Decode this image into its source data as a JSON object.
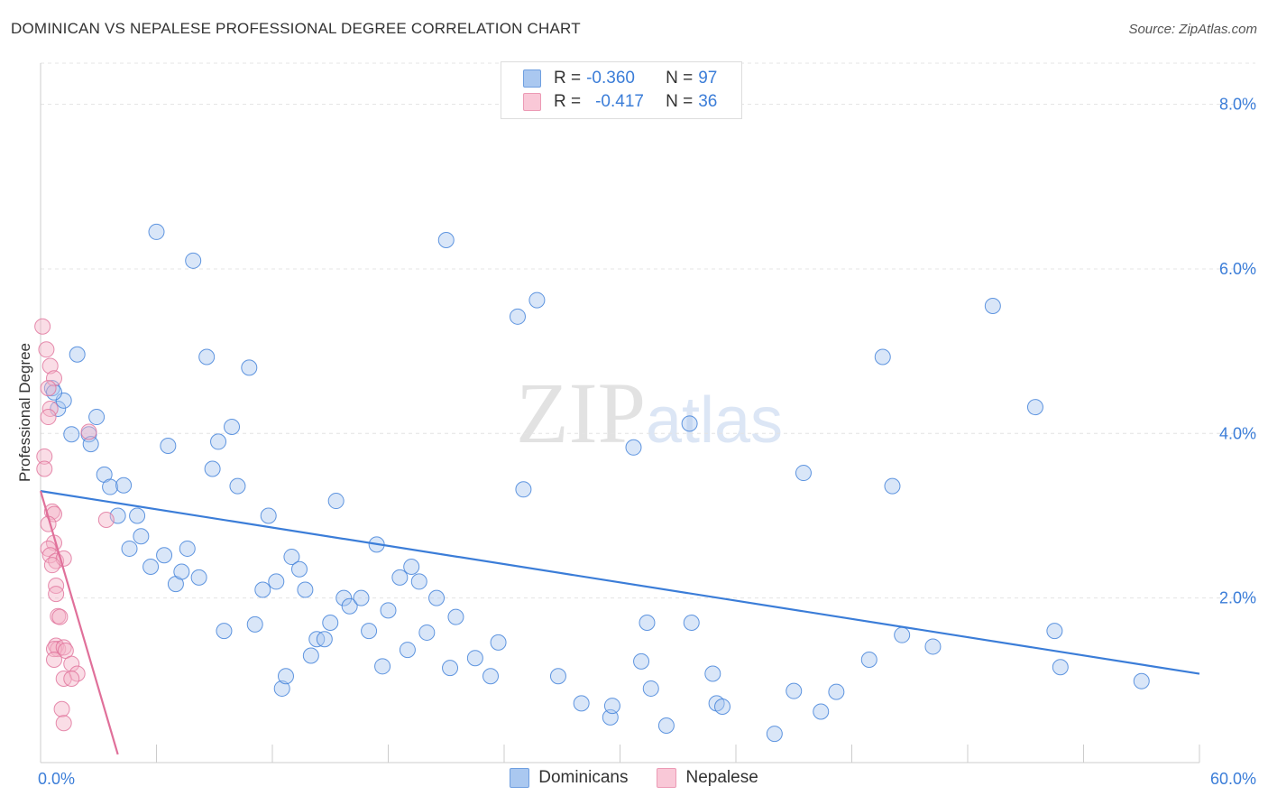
{
  "chart_data": {
    "type": "scatter",
    "title": "DOMINICAN VS NEPALESE PROFESSIONAL DEGREE CORRELATION CHART",
    "source": "Source: ZipAtlas.com",
    "ylabel": "Professional Degree",
    "xlabel": "",
    "xlim": [
      0,
      60
    ],
    "ylim": [
      0,
      8.5
    ],
    "y_ticks": [
      2,
      4,
      6,
      8
    ],
    "y_tick_labels": [
      "2.0%",
      "4.0%",
      "6.0%",
      "8.0%"
    ],
    "x_tick_labels": {
      "min": "0.0%",
      "max": "60.0%"
    },
    "grid": true,
    "legend_position": "top-center",
    "watermark": "ZIPatlas",
    "colors": {
      "blue": "#3b7dd8",
      "blue_fill": "#aac8f0",
      "pink": "#e0709a",
      "pink_fill": "#f5b3c8"
    },
    "series": [
      {
        "name": "Dominicans",
        "color": "blue",
        "R_label": "R = ",
        "R_value": "-0.360",
        "N_label": "N = ",
        "N_value": "97",
        "trend": {
          "x0": 0,
          "y0": 3.3,
          "x1": 60,
          "y1": 1.08
        },
        "points": [
          [
            0.6,
            4.55
          ],
          [
            0.9,
            4.3
          ],
          [
            1.2,
            4.4
          ],
          [
            1.9,
            4.96
          ],
          [
            1.6,
            3.99
          ],
          [
            2.5,
            3.99
          ],
          [
            2.6,
            3.87
          ],
          [
            2.9,
            4.2
          ],
          [
            3.3,
            3.5
          ],
          [
            3.6,
            3.35
          ],
          [
            4.0,
            3.0
          ],
          [
            4.3,
            3.37
          ],
          [
            4.6,
            2.6
          ],
          [
            5.0,
            3.0
          ],
          [
            5.2,
            2.75
          ],
          [
            5.7,
            2.38
          ],
          [
            6.0,
            6.45
          ],
          [
            6.4,
            2.52
          ],
          [
            6.6,
            3.85
          ],
          [
            7.0,
            2.17
          ],
          [
            7.3,
            2.32
          ],
          [
            7.6,
            2.6
          ],
          [
            7.9,
            6.1
          ],
          [
            8.2,
            2.25
          ],
          [
            8.6,
            4.93
          ],
          [
            8.9,
            3.57
          ],
          [
            9.2,
            3.9
          ],
          [
            9.5,
            1.6
          ],
          [
            9.9,
            4.08
          ],
          [
            10.2,
            3.36
          ],
          [
            10.8,
            4.8
          ],
          [
            11.1,
            1.68
          ],
          [
            11.5,
            2.1
          ],
          [
            11.8,
            3.0
          ],
          [
            12.2,
            2.2
          ],
          [
            12.5,
            0.9
          ],
          [
            12.7,
            1.05
          ],
          [
            13.0,
            2.5
          ],
          [
            13.4,
            2.35
          ],
          [
            13.7,
            2.1
          ],
          [
            14.0,
            1.3
          ],
          [
            14.3,
            1.5
          ],
          [
            14.7,
            1.5
          ],
          [
            15.0,
            1.7
          ],
          [
            15.3,
            3.18
          ],
          [
            15.7,
            2.0
          ],
          [
            16.0,
            1.9
          ],
          [
            16.6,
            2.0
          ],
          [
            17.0,
            1.6
          ],
          [
            17.4,
            2.65
          ],
          [
            17.7,
            1.17
          ],
          [
            18.0,
            1.85
          ],
          [
            18.6,
            2.25
          ],
          [
            19.0,
            1.37
          ],
          [
            19.2,
            2.38
          ],
          [
            19.6,
            2.2
          ],
          [
            20.0,
            1.58
          ],
          [
            20.5,
            2.0
          ],
          [
            21.0,
            6.35
          ],
          [
            21.2,
            1.15
          ],
          [
            21.5,
            1.77
          ],
          [
            22.5,
            1.27
          ],
          [
            23.3,
            1.05
          ],
          [
            23.7,
            1.46
          ],
          [
            24.7,
            5.42
          ],
          [
            25.0,
            3.32
          ],
          [
            25.7,
            5.62
          ],
          [
            26.8,
            1.05
          ],
          [
            28.0,
            0.72
          ],
          [
            29.5,
            0.55
          ],
          [
            29.6,
            0.69
          ],
          [
            30.7,
            3.83
          ],
          [
            31.1,
            1.23
          ],
          [
            31.4,
            1.7
          ],
          [
            31.6,
            0.9
          ],
          [
            32.4,
            0.45
          ],
          [
            33.6,
            4.12
          ],
          [
            33.7,
            1.7
          ],
          [
            34.8,
            1.08
          ],
          [
            35.0,
            0.72
          ],
          [
            35.3,
            0.68
          ],
          [
            38.0,
            0.35
          ],
          [
            39.0,
            0.87
          ],
          [
            39.5,
            3.52
          ],
          [
            40.4,
            0.62
          ],
          [
            41.2,
            0.86
          ],
          [
            42.9,
            1.25
          ],
          [
            43.6,
            4.93
          ],
          [
            44.1,
            3.36
          ],
          [
            44.6,
            1.55
          ],
          [
            46.2,
            1.41
          ],
          [
            49.3,
            5.55
          ],
          [
            51.5,
            4.32
          ],
          [
            52.5,
            1.6
          ],
          [
            52.8,
            1.16
          ],
          [
            57.0,
            0.99
          ],
          [
            0.7,
            4.5
          ]
        ]
      },
      {
        "name": "Nepalese",
        "color": "pink",
        "R_label": "R = ",
        "R_value": "-0.417",
        "N_label": "N = ",
        "N_value": "36",
        "trend": {
          "x0": 0,
          "y0": 3.3,
          "x1": 4.0,
          "y1": 0.1
        },
        "points": [
          [
            0.1,
            5.3
          ],
          [
            0.3,
            5.02
          ],
          [
            0.5,
            4.82
          ],
          [
            0.7,
            4.67
          ],
          [
            0.4,
            4.55
          ],
          [
            0.5,
            4.3
          ],
          [
            0.4,
            4.2
          ],
          [
            0.2,
            3.72
          ],
          [
            0.2,
            3.57
          ],
          [
            0.6,
            3.05
          ],
          [
            0.7,
            3.02
          ],
          [
            0.4,
            2.9
          ],
          [
            0.7,
            2.67
          ],
          [
            0.4,
            2.6
          ],
          [
            0.5,
            2.52
          ],
          [
            0.8,
            2.45
          ],
          [
            1.2,
            2.48
          ],
          [
            0.6,
            2.4
          ],
          [
            0.8,
            2.15
          ],
          [
            0.8,
            2.05
          ],
          [
            0.9,
            1.78
          ],
          [
            1.0,
            1.77
          ],
          [
            0.8,
            1.42
          ],
          [
            0.9,
            1.38
          ],
          [
            0.7,
            1.38
          ],
          [
            1.2,
            1.4
          ],
          [
            1.3,
            1.36
          ],
          [
            0.7,
            1.25
          ],
          [
            1.6,
            1.2
          ],
          [
            1.9,
            1.08
          ],
          [
            1.2,
            1.02
          ],
          [
            1.6,
            1.02
          ],
          [
            1.1,
            0.65
          ],
          [
            1.2,
            0.48
          ],
          [
            3.4,
            2.95
          ],
          [
            2.5,
            4.02
          ]
        ]
      }
    ]
  }
}
